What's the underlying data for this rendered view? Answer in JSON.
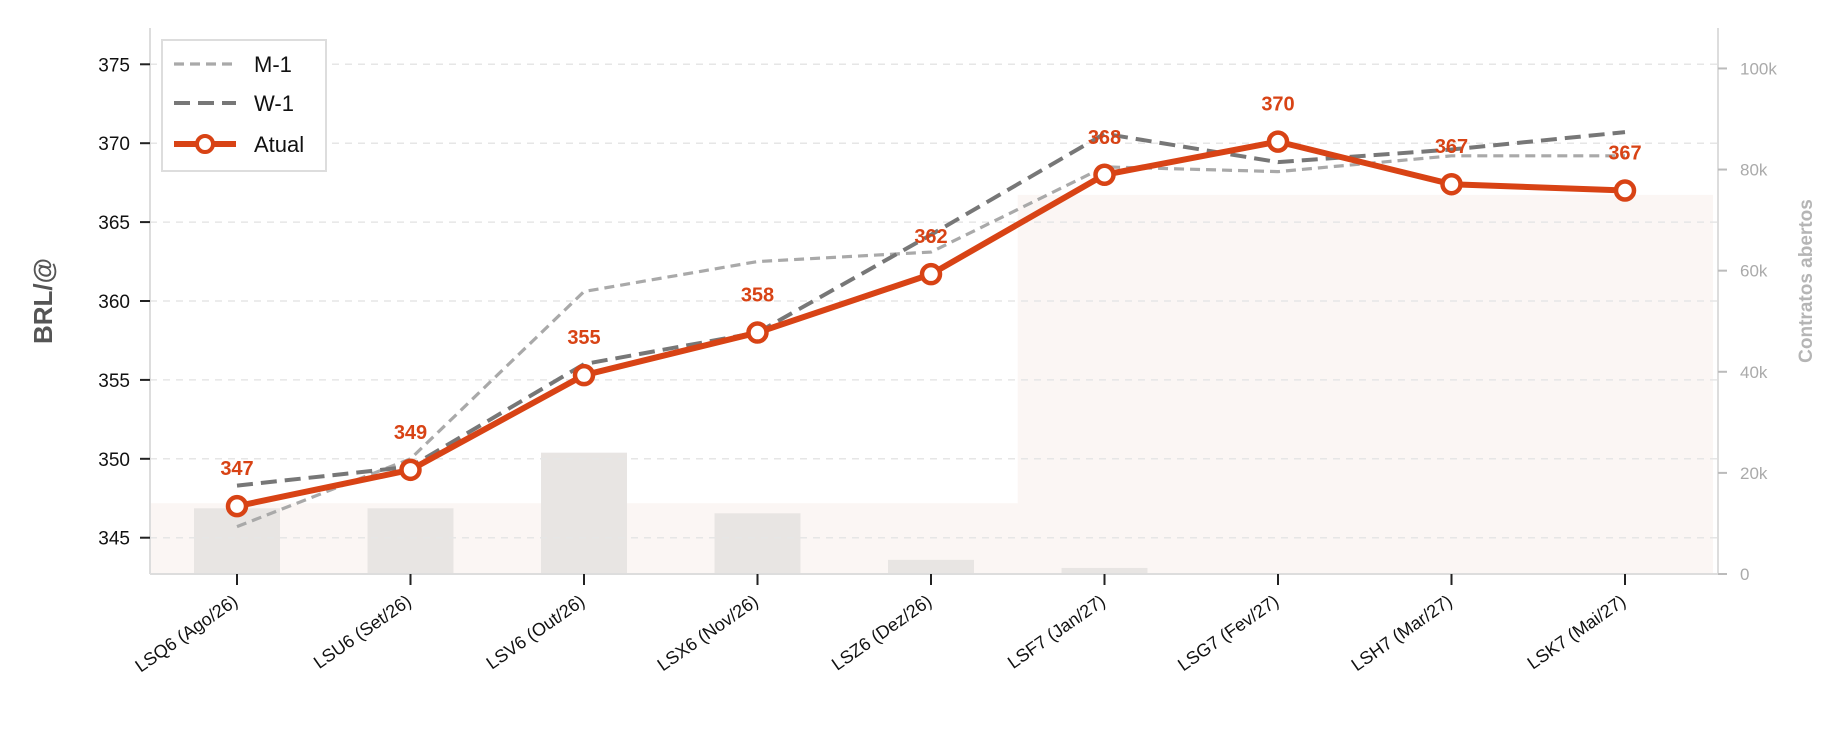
{
  "chart_data": {
    "type": "line",
    "title": "",
    "categories": [
      "LSQ6 (Ago/26)",
      "LSU6 (Set/26)",
      "LSV6 (Out/26)",
      "LSX6 (Nov/26)",
      "LSZ6 (Dez/26)",
      "LSF7 (Jan/27)",
      "LSG7 (Fev/27)",
      "LSH7 (Mar/27)",
      "LSK7 (Mai/27)"
    ],
    "series": [
      {
        "name": "M-1",
        "values": [
          345.7,
          350.0,
          360.6,
          362.5,
          363.1,
          368.5,
          368.2,
          369.2,
          369.2
        ],
        "color": "#a9a9a9",
        "style": "dashed-light"
      },
      {
        "name": "W-1",
        "values": [
          348.3,
          349.5,
          356.0,
          358.0,
          364.2,
          370.6,
          368.8,
          369.6,
          370.7
        ],
        "color": "#777777",
        "style": "dashed"
      },
      {
        "name": "Atual",
        "values": [
          347.0,
          349.3,
          355.3,
          358.0,
          361.7,
          368.0,
          370.1,
          367.4,
          367.0
        ],
        "color": "#d84315",
        "style": "solid-markers"
      }
    ],
    "data_labels": [
      "347",
      "349",
      "355",
      "358",
      "362",
      "368",
      "370",
      "367",
      "367"
    ],
    "open_interest": {
      "values": [
        13000,
        13000,
        24000,
        12000,
        2800,
        1200,
        0,
        0,
        0
      ],
      "fill_level": [
        14000,
        14000,
        14000,
        14000,
        14000,
        75000,
        75000,
        75000,
        75000
      ],
      "color": "#e8e5e3"
    },
    "ylabel": "BRL/@",
    "y2label": "Contratos abertos",
    "ylim": [
      342.7,
      377.3
    ],
    "yticks": [
      "345",
      "350",
      "355",
      "360",
      "365",
      "370",
      "375"
    ],
    "y2lim": [
      0,
      108000
    ],
    "y2ticks": [
      "0",
      "20k",
      "40k",
      "60k",
      "80k",
      "100k"
    ],
    "grid": true,
    "legend_position": "top-left"
  }
}
